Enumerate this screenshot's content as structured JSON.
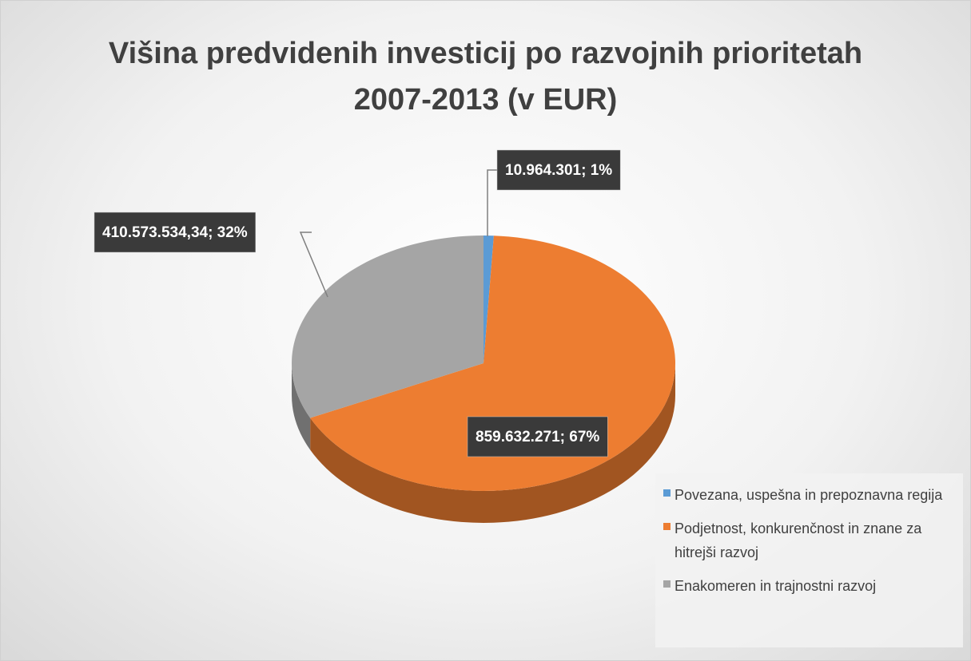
{
  "chart_data": {
    "type": "pie",
    "title": "Višina predvidenih investicij po razvojnih prioritetah 2007-2013 (v EUR)",
    "categories": [
      "Povezana, uspešna in prepoznavna regija",
      "Podjetnost, konkurenčnost in znane za hitrejši razvoj",
      "Enakomeren in trajnostni razvoj"
    ],
    "values": [
      10964301,
      859632271,
      410573534.34
    ],
    "value_labels": [
      "10.964.301; 1%",
      "859.632.271; 67%",
      "410.573.534,34; 32%"
    ],
    "colors": [
      "#5b9bd5",
      "#ed7d31",
      "#a5a5a5"
    ],
    "legend": "bottom-right"
  }
}
